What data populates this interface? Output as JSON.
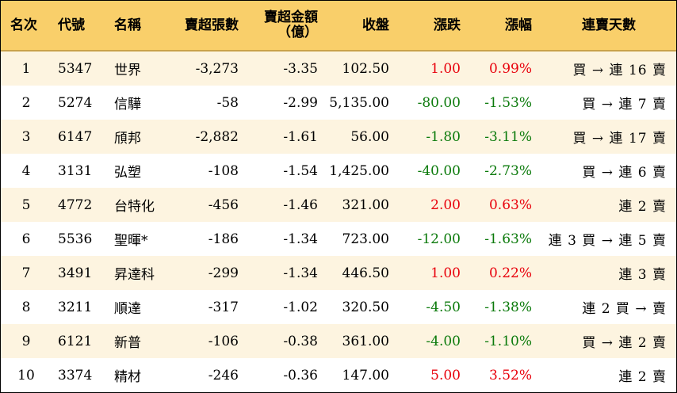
{
  "headers": {
    "rank": "名次",
    "code": "代號",
    "name": "名稱",
    "net_sell_lots": "賣超張數",
    "net_sell_amount_line1": "賣超金額",
    "net_sell_amount_line2": "（億）",
    "close": "收盤",
    "change": "漲跌",
    "change_pct": "漲幅",
    "streak": "連賣天數"
  },
  "rows": [
    {
      "rank": "1",
      "code": "5347",
      "name": "世界",
      "lots": "-3,273",
      "amount": "-3.35",
      "close": "102.50",
      "change": "1.00",
      "pct": "0.99%",
      "streak": "買 → 連 16 賣",
      "dir": "up"
    },
    {
      "rank": "2",
      "code": "5274",
      "name": "信驊",
      "lots": "-58",
      "amount": "-2.99",
      "close": "5,135.00",
      "change": "-80.00",
      "pct": "-1.53%",
      "streak": "買 → 連 7 賣",
      "dir": "down"
    },
    {
      "rank": "3",
      "code": "6147",
      "name": "頎邦",
      "lots": "-2,882",
      "amount": "-1.61",
      "close": "56.00",
      "change": "-1.80",
      "pct": "-3.11%",
      "streak": "買 → 連 17 賣",
      "dir": "down"
    },
    {
      "rank": "4",
      "code": "3131",
      "name": "弘塑",
      "lots": "-108",
      "amount": "-1.54",
      "close": "1,425.00",
      "change": "-40.00",
      "pct": "-2.73%",
      "streak": "買 → 連 6 賣",
      "dir": "down"
    },
    {
      "rank": "5",
      "code": "4772",
      "name": "台特化",
      "lots": "-456",
      "amount": "-1.46",
      "close": "321.00",
      "change": "2.00",
      "pct": "0.63%",
      "streak": "連 2 賣",
      "dir": "up"
    },
    {
      "rank": "6",
      "code": "5536",
      "name": "聖暉*",
      "lots": "-186",
      "amount": "-1.34",
      "close": "723.00",
      "change": "-12.00",
      "pct": "-1.63%",
      "streak": "連 3 買 → 連 5 賣",
      "dir": "down"
    },
    {
      "rank": "7",
      "code": "3491",
      "name": "昇達科",
      "lots": "-299",
      "amount": "-1.34",
      "close": "446.50",
      "change": "1.00",
      "pct": "0.22%",
      "streak": "連 3 賣",
      "dir": "up"
    },
    {
      "rank": "8",
      "code": "3211",
      "name": "順達",
      "lots": "-317",
      "amount": "-1.02",
      "close": "320.50",
      "change": "-4.50",
      "pct": "-1.38%",
      "streak": "連 2 買 → 賣",
      "dir": "down"
    },
    {
      "rank": "9",
      "code": "6121",
      "name": "新普",
      "lots": "-106",
      "amount": "-0.38",
      "close": "361.00",
      "change": "-4.00",
      "pct": "-1.10%",
      "streak": "買 → 連 2 賣",
      "dir": "down"
    },
    {
      "rank": "10",
      "code": "3374",
      "name": "精材",
      "lots": "-246",
      "amount": "-0.36",
      "close": "147.00",
      "change": "5.00",
      "pct": "3.52%",
      "streak": "連 2 賣",
      "dir": "up"
    }
  ],
  "colors": {
    "up": "#e8000b",
    "down": "#0b7a0b",
    "header_bg": "#f9cf6a",
    "stripe_bg": "#fdf4e0"
  }
}
